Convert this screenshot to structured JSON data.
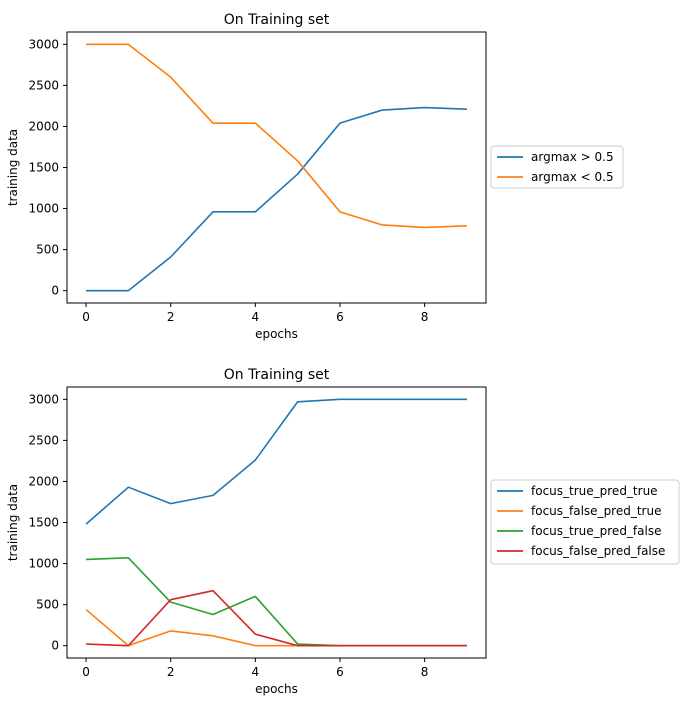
{
  "chart_data": [
    {
      "type": "line",
      "title": "On Training set",
      "xlabel": "epochs",
      "ylabel": "training data",
      "x": [
        0,
        1,
        2,
        3,
        4,
        5,
        6,
        7,
        8,
        9
      ],
      "xlim": [
        -0.45,
        9.45
      ],
      "ylim": [
        -150,
        3150
      ],
      "xticks": [
        0,
        2,
        4,
        6,
        8
      ],
      "yticks": [
        0,
        500,
        1000,
        1500,
        2000,
        2500,
        3000
      ],
      "legend_position": "right, outside",
      "series": [
        {
          "name": "argmax > 0.5",
          "color": "#1f77b4",
          "values": [
            0,
            0,
            410,
            960,
            960,
            1420,
            2040,
            2200,
            2230,
            2210
          ]
        },
        {
          "name": "argmax < 0.5",
          "color": "#ff7f0e",
          "values": [
            3000,
            3000,
            2600,
            2040,
            2040,
            1580,
            960,
            800,
            770,
            790
          ]
        }
      ]
    },
    {
      "type": "line",
      "title": "On Training set",
      "xlabel": "epochs",
      "ylabel": "training data",
      "x": [
        0,
        1,
        2,
        3,
        4,
        5,
        6,
        7,
        8,
        9
      ],
      "xlim": [
        -0.45,
        9.45
      ],
      "ylim": [
        -150,
        3150
      ],
      "xticks": [
        0,
        2,
        4,
        6,
        8
      ],
      "yticks": [
        0,
        500,
        1000,
        1500,
        2000,
        2500,
        3000
      ],
      "legend_position": "right, outside",
      "series": [
        {
          "name": "focus_true_pred_true",
          "color": "#1f77b4",
          "values": [
            1480,
            1930,
            1730,
            1830,
            2260,
            2970,
            3000,
            3000,
            3000,
            3000
          ]
        },
        {
          "name": "focus_false_pred_true",
          "color": "#ff7f0e",
          "values": [
            440,
            0,
            180,
            120,
            0,
            0,
            0,
            0,
            0,
            0
          ]
        },
        {
          "name": "focus_true_pred_false",
          "color": "#2ca02c",
          "values": [
            1050,
            1070,
            530,
            380,
            600,
            20,
            0,
            0,
            0,
            0
          ]
        },
        {
          "name": "focus_false_pred_false",
          "color": "#d62728",
          "values": [
            20,
            0,
            560,
            670,
            140,
            0,
            0,
            0,
            0,
            0
          ]
        }
      ]
    }
  ]
}
